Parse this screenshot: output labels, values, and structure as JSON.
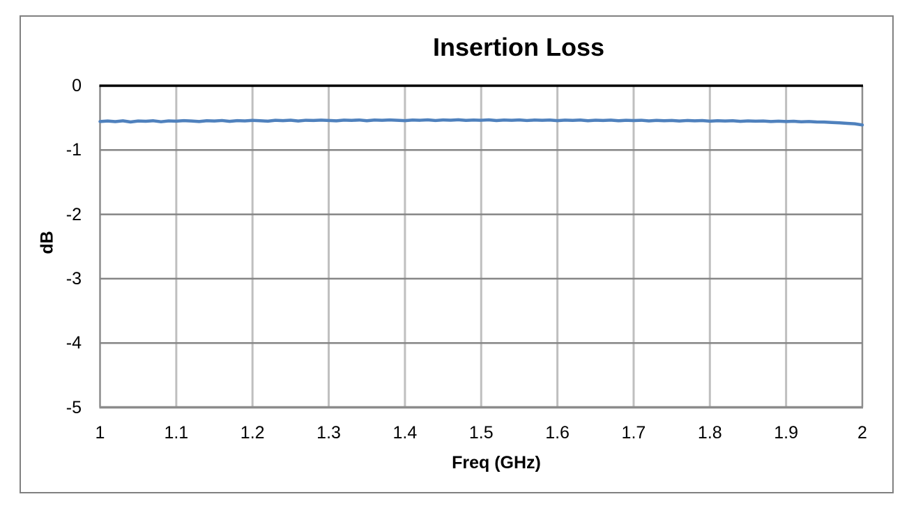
{
  "style": {
    "background": "#FFFFFF",
    "frame_border_color": "#808080",
    "v_gridline_color": "#BFBFBF",
    "h_gridline_color": "#858585",
    "plot_border_color": "#8C8C8C",
    "zero_axis_color": "#000000",
    "bottom_axis_color": "#8C8C8C",
    "line_color": "#4F81BD",
    "text_color": "#000000"
  },
  "chart_data": {
    "type": "line",
    "title": "Insertion Loss",
    "xlabel": "Freq (GHz)",
    "ylabel": "dB",
    "xlim": [
      1,
      2
    ],
    "ylim": [
      -5,
      0
    ],
    "grid": true,
    "legend": false,
    "xticks": [
      1,
      1.1,
      1.2,
      1.3,
      1.4,
      1.5,
      1.6,
      1.7,
      1.8,
      1.9,
      2
    ],
    "xtick_labels": [
      "1",
      "1.1",
      "1.2",
      "1.3",
      "1.4",
      "1.5",
      "1.6",
      "1.7",
      "1.8",
      "1.9",
      "2"
    ],
    "yticks": [
      0,
      -1,
      -2,
      -3,
      -4,
      -5
    ],
    "ytick_labels": [
      "0",
      "-1",
      "-2",
      "-3",
      "-4",
      "-5"
    ],
    "series": [
      {
        "name": "Insertion Loss",
        "color": "#4F81BD",
        "x": [
          1.0,
          1.01,
          1.02,
          1.03,
          1.04,
          1.05,
          1.06,
          1.07,
          1.08,
          1.09,
          1.1,
          1.11,
          1.12,
          1.13,
          1.14,
          1.15,
          1.16,
          1.17,
          1.18,
          1.19,
          1.2,
          1.21,
          1.22,
          1.23,
          1.24,
          1.25,
          1.26,
          1.27,
          1.28,
          1.29,
          1.3,
          1.31,
          1.32,
          1.33,
          1.34,
          1.35,
          1.36,
          1.37,
          1.38,
          1.39,
          1.4,
          1.41,
          1.42,
          1.43,
          1.44,
          1.45,
          1.46,
          1.47,
          1.48,
          1.49,
          1.5,
          1.51,
          1.52,
          1.53,
          1.54,
          1.55,
          1.56,
          1.57,
          1.58,
          1.59,
          1.6,
          1.61,
          1.62,
          1.63,
          1.64,
          1.65,
          1.66,
          1.67,
          1.68,
          1.69,
          1.7,
          1.71,
          1.72,
          1.73,
          1.74,
          1.75,
          1.76,
          1.77,
          1.78,
          1.79,
          1.8,
          1.81,
          1.82,
          1.83,
          1.84,
          1.85,
          1.86,
          1.87,
          1.88,
          1.89,
          1.9,
          1.91,
          1.92,
          1.93,
          1.94,
          1.95,
          1.96,
          1.97,
          1.98,
          1.99,
          2.0
        ],
        "y": [
          -0.556,
          -0.549,
          -0.558,
          -0.546,
          -0.563,
          -0.548,
          -0.552,
          -0.545,
          -0.56,
          -0.547,
          -0.551,
          -0.543,
          -0.549,
          -0.557,
          -0.544,
          -0.548,
          -0.541,
          -0.554,
          -0.543,
          -0.547,
          -0.539,
          -0.544,
          -0.551,
          -0.538,
          -0.543,
          -0.536,
          -0.548,
          -0.537,
          -0.541,
          -0.535,
          -0.54,
          -0.546,
          -0.535,
          -0.539,
          -0.533,
          -0.544,
          -0.534,
          -0.538,
          -0.532,
          -0.537,
          -0.543,
          -0.533,
          -0.537,
          -0.531,
          -0.541,
          -0.532,
          -0.536,
          -0.53,
          -0.539,
          -0.533,
          -0.537,
          -0.531,
          -0.542,
          -0.533,
          -0.537,
          -0.532,
          -0.541,
          -0.534,
          -0.538,
          -0.533,
          -0.543,
          -0.535,
          -0.539,
          -0.534,
          -0.544,
          -0.536,
          -0.54,
          -0.535,
          -0.545,
          -0.538,
          -0.542,
          -0.537,
          -0.547,
          -0.539,
          -0.544,
          -0.54,
          -0.549,
          -0.541,
          -0.546,
          -0.542,
          -0.551,
          -0.544,
          -0.548,
          -0.545,
          -0.554,
          -0.547,
          -0.551,
          -0.548,
          -0.557,
          -0.551,
          -0.556,
          -0.553,
          -0.561,
          -0.557,
          -0.564,
          -0.565,
          -0.571,
          -0.577,
          -0.585,
          -0.592,
          -0.61
        ]
      }
    ]
  }
}
